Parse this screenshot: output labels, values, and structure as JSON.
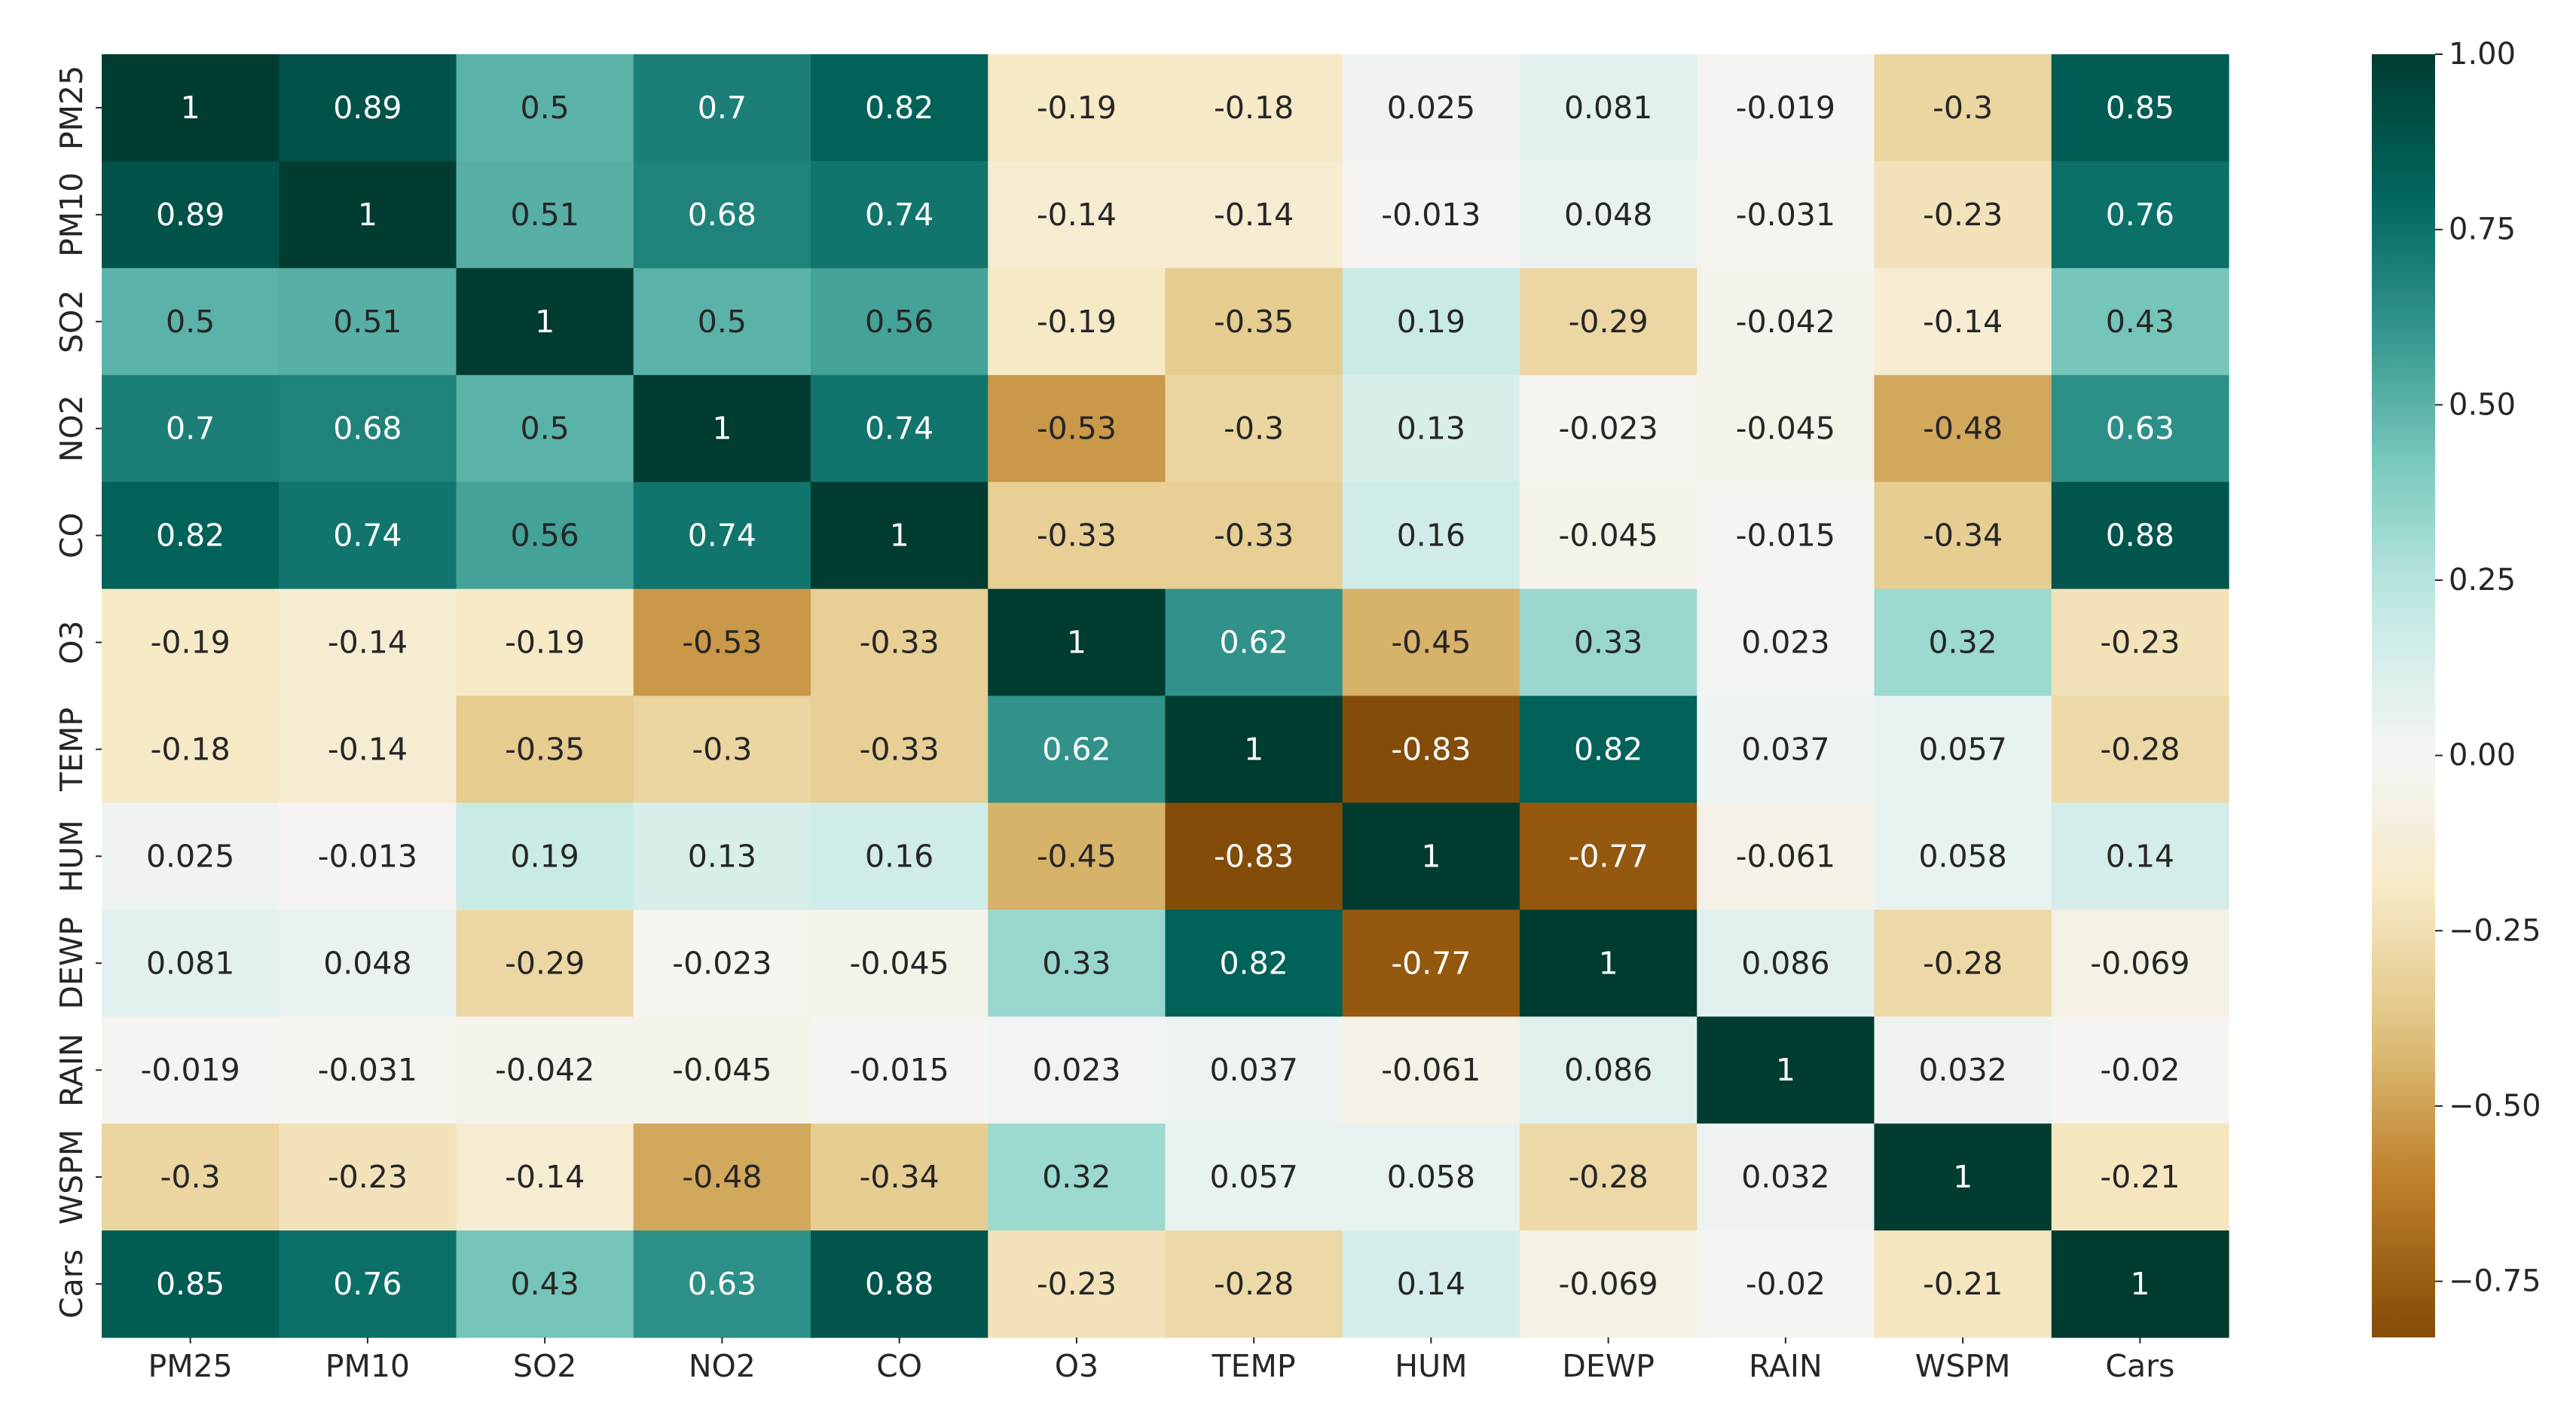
{
  "chart_data": {
    "type": "heatmap",
    "title": "",
    "xlabel": "",
    "ylabel": "",
    "x_categories": [
      "PM25",
      "PM10",
      "SO2",
      "NO2",
      "CO",
      "O3",
      "TEMP",
      "HUM",
      "DEWP",
      "RAIN",
      "WSPM",
      "Cars"
    ],
    "y_categories": [
      "PM25",
      "PM10",
      "SO2",
      "NO2",
      "CO",
      "O3",
      "TEMP",
      "HUM",
      "DEWP",
      "RAIN",
      "WSPM",
      "Cars"
    ],
    "values": [
      [
        1,
        0.89,
        0.5,
        0.7,
        0.82,
        -0.19,
        -0.18,
        0.025,
        0.081,
        -0.019,
        -0.3,
        0.85
      ],
      [
        0.89,
        1,
        0.51,
        0.68,
        0.74,
        -0.14,
        -0.14,
        -0.013,
        0.048,
        -0.031,
        -0.23,
        0.76
      ],
      [
        0.5,
        0.51,
        1,
        0.5,
        0.56,
        -0.19,
        -0.35,
        0.19,
        -0.29,
        -0.042,
        -0.14,
        0.43
      ],
      [
        0.7,
        0.68,
        0.5,
        1,
        0.74,
        -0.53,
        -0.3,
        0.13,
        -0.023,
        -0.045,
        -0.48,
        0.63
      ],
      [
        0.82,
        0.74,
        0.56,
        0.74,
        1,
        -0.33,
        -0.33,
        0.16,
        -0.045,
        -0.015,
        -0.34,
        0.88
      ],
      [
        -0.19,
        -0.14,
        -0.19,
        -0.53,
        -0.33,
        1,
        0.62,
        -0.45,
        0.33,
        0.023,
        0.32,
        -0.23
      ],
      [
        -0.18,
        -0.14,
        -0.35,
        -0.3,
        -0.33,
        0.62,
        1,
        -0.83,
        0.82,
        0.037,
        0.057,
        -0.28
      ],
      [
        0.025,
        -0.013,
        0.19,
        0.13,
        0.16,
        -0.45,
        -0.83,
        1,
        -0.77,
        -0.061,
        0.058,
        0.14
      ],
      [
        0.081,
        0.048,
        -0.29,
        -0.023,
        -0.045,
        0.33,
        0.82,
        -0.77,
        1,
        0.086,
        -0.28,
        -0.069
      ],
      [
        -0.019,
        -0.031,
        -0.042,
        -0.045,
        -0.015,
        0.023,
        0.037,
        -0.061,
        0.086,
        1,
        0.032,
        -0.02
      ],
      [
        -0.3,
        -0.23,
        -0.14,
        -0.48,
        -0.34,
        0.32,
        0.057,
        0.058,
        -0.28,
        0.032,
        1,
        -0.21
      ],
      [
        0.85,
        0.76,
        0.43,
        0.63,
        0.88,
        -0.23,
        -0.28,
        0.14,
        -0.069,
        -0.02,
        -0.21,
        1
      ]
    ],
    "annotations": [
      [
        "1",
        "0.89",
        "0.5",
        "0.7",
        "0.82",
        "-0.19",
        "-0.18",
        "0.025",
        "0.081",
        "-0.019",
        "-0.3",
        "0.85"
      ],
      [
        "0.89",
        "1",
        "0.51",
        "0.68",
        "0.74",
        "-0.14",
        "-0.14",
        "-0.013",
        "0.048",
        "-0.031",
        "-0.23",
        "0.76"
      ],
      [
        "0.5",
        "0.51",
        "1",
        "0.5",
        "0.56",
        "-0.19",
        "-0.35",
        "0.19",
        "-0.29",
        "-0.042",
        "-0.14",
        "0.43"
      ],
      [
        "0.7",
        "0.68",
        "0.5",
        "1",
        "0.74",
        "-0.53",
        "-0.3",
        "0.13",
        "-0.023",
        "-0.045",
        "-0.48",
        "0.63"
      ],
      [
        "0.82",
        "0.74",
        "0.56",
        "0.74",
        "1",
        "-0.33",
        "-0.33",
        "0.16",
        "-0.045",
        "-0.015",
        "-0.34",
        "0.88"
      ],
      [
        "-0.19",
        "-0.14",
        "-0.19",
        "-0.53",
        "-0.33",
        "1",
        "0.62",
        "-0.45",
        "0.33",
        "0.023",
        "0.32",
        "-0.23"
      ],
      [
        "-0.18",
        "-0.14",
        "-0.35",
        "-0.3",
        "-0.33",
        "0.62",
        "1",
        "-0.83",
        "0.82",
        "0.037",
        "0.057",
        "-0.28"
      ],
      [
        "0.025",
        "-0.013",
        "0.19",
        "0.13",
        "0.16",
        "-0.45",
        "-0.83",
        "1",
        "-0.77",
        "-0.061",
        "0.058",
        "0.14"
      ],
      [
        "0.081",
        "0.048",
        "-0.29",
        "-0.023",
        "-0.045",
        "0.33",
        "0.82",
        "-0.77",
        "1",
        "0.086",
        "-0.28",
        "-0.069"
      ],
      [
        "-0.019",
        "-0.031",
        "-0.042",
        "-0.045",
        "-0.015",
        "0.023",
        "0.037",
        "-0.061",
        "0.086",
        "1",
        "0.032",
        "-0.02"
      ],
      [
        "-0.3",
        "-0.23",
        "-0.14",
        "-0.48",
        "-0.34",
        "0.32",
        "0.057",
        "0.058",
        "-0.28",
        "0.032",
        "1",
        "-0.21"
      ],
      [
        "0.85",
        "0.76",
        "0.43",
        "0.63",
        "0.88",
        "-0.23",
        "-0.28",
        "0.14",
        "-0.069",
        "-0.02",
        "-0.21",
        "1"
      ]
    ],
    "colorscale": {
      "name": "BrBG",
      "vmin": -0.83,
      "vmax": 1.0,
      "stops": [
        "#543005",
        "#8c510a",
        "#bf812d",
        "#dfc27d",
        "#f6e8c3",
        "#f5f5f5",
        "#c7eae5",
        "#80cdc1",
        "#35978f",
        "#01665e",
        "#003c30"
      ]
    },
    "colorbar": {
      "ticks": [
        1.0,
        0.75,
        0.5,
        0.25,
        0.0,
        -0.25,
        -0.5,
        -0.75
      ],
      "tick_labels": [
        "1.00",
        "0.75",
        "0.50",
        "0.25",
        "0.00",
        "−0.25",
        "−0.50",
        "−0.75"
      ],
      "placement": "right"
    },
    "grid": false,
    "legend": "none"
  }
}
